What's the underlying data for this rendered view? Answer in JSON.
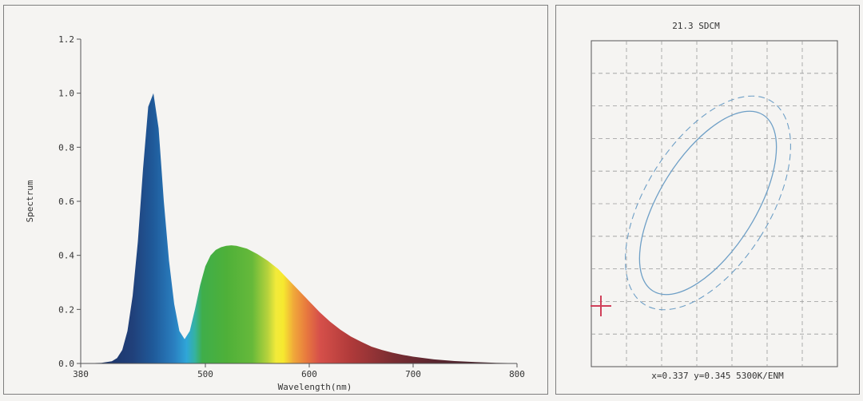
{
  "chart_data": [
    {
      "type": "area",
      "title": "",
      "xlabel": "Wavelength(nm)",
      "ylabel": "Spectrum",
      "xlim": [
        380,
        800
      ],
      "ylim": [
        0,
        1.2
      ],
      "x_ticks": [
        "380",
        "500",
        "600",
        "700",
        "800"
      ],
      "y_ticks": [
        "0.0",
        "0.2",
        "0.4",
        "0.6",
        "0.8",
        "1.0",
        "1.2"
      ],
      "grid": false,
      "fill": "visible-spectrum gradient",
      "series": [
        {
          "x": [
            380,
            400,
            410,
            415,
            420,
            425,
            430,
            435,
            440,
            445,
            450,
            455,
            460,
            465,
            470,
            475,
            480,
            485,
            490,
            495,
            500,
            505,
            510,
            515,
            520,
            525,
            530,
            540,
            550,
            560,
            570,
            580,
            590,
            600,
            610,
            620,
            630,
            640,
            650,
            660,
            670,
            680,
            690,
            700,
            720,
            740,
            760,
            780,
            800
          ],
          "values": [
            0.0,
            0.002,
            0.008,
            0.02,
            0.05,
            0.12,
            0.25,
            0.45,
            0.72,
            0.95,
            1.0,
            0.87,
            0.6,
            0.38,
            0.22,
            0.12,
            0.09,
            0.12,
            0.2,
            0.29,
            0.36,
            0.4,
            0.42,
            0.43,
            0.435,
            0.437,
            0.435,
            0.425,
            0.405,
            0.38,
            0.35,
            0.31,
            0.27,
            0.23,
            0.19,
            0.155,
            0.125,
            0.1,
            0.08,
            0.062,
            0.05,
            0.04,
            0.032,
            0.025,
            0.015,
            0.009,
            0.005,
            0.002,
            0.001
          ]
        }
      ]
    },
    {
      "type": "scatter",
      "title": "21.3 SDCM",
      "xlabel": "",
      "ylabel": "",
      "x": [
        0.337
      ],
      "y": [
        0.345
      ],
      "point_marker": "red cross",
      "ellipse_orientation": "tilted upper-right",
      "grid": true
    }
  ],
  "sdcm": {
    "title": "21.3 SDCM",
    "readout": "x=0.337 y=0.345 5300K/ENM"
  },
  "colors": {
    "axis": "#555555",
    "grid": "#9a9a9a",
    "ellipse": "#6e9fc6",
    "marker": "#d0405a"
  }
}
